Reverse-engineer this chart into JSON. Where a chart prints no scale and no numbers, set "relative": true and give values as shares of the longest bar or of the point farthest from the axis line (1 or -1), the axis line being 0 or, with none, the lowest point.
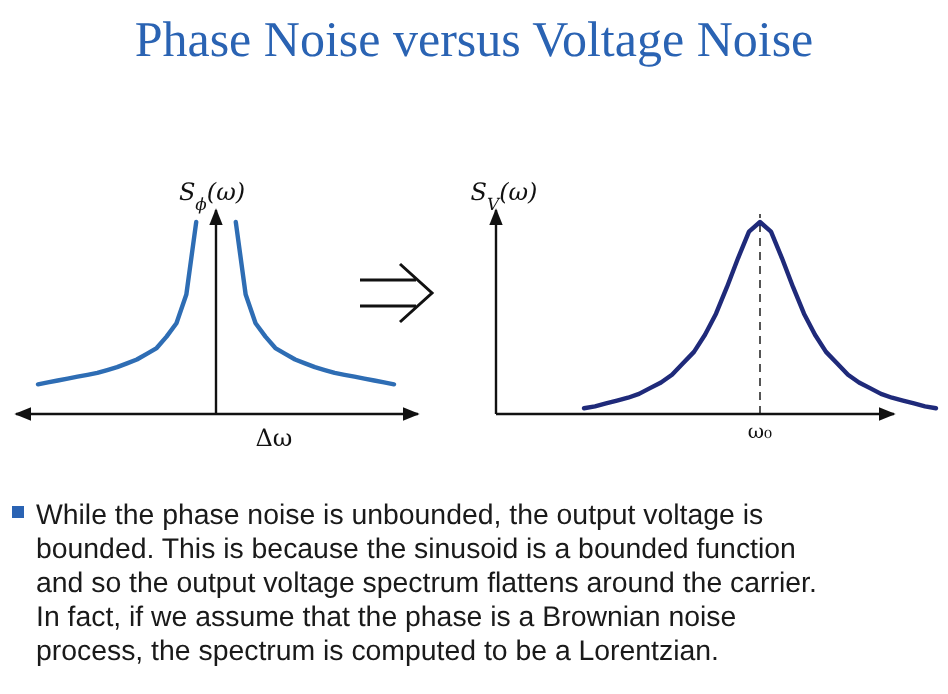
{
  "chart_data": [
    {
      "type": "line",
      "xlabel": "Δω",
      "ylabel": "S$_{ϕ}$(ω)",
      "relative": true,
      "categories": [
        null,
        null,
        null,
        null,
        null,
        null,
        null,
        null,
        null,
        null,
        null,
        null,
        null,
        null,
        null,
        null,
        null,
        null,
        null,
        null,
        null,
        null,
        null,
        null,
        null,
        null,
        null,
        null,
        null,
        null,
        null,
        null,
        null,
        null,
        null,
        null,
        null
      ],
      "series": [
        {
          "color": "#2e6db4",
          "values": [
            0.15,
            0.16,
            0.17,
            0.18,
            0.19,
            0.2,
            0.21,
            0.225,
            0.24,
            0.26,
            0.28,
            0.31,
            0.34,
            0.4,
            0.47,
            0.62,
            1.0,
            null,
            null,
            null,
            null,
            null,
            null,
            null,
            null,
            null,
            null,
            null,
            null,
            null,
            null,
            null,
            null,
            null,
            null,
            null,
            null
          ]
        },
        {
          "color": "#2e6db4",
          "values": [
            null,
            null,
            null,
            null,
            null,
            null,
            null,
            null,
            null,
            null,
            null,
            null,
            null,
            null,
            null,
            null,
            null,
            null,
            null,
            null,
            1.0,
            0.62,
            0.47,
            0.4,
            0.34,
            0.31,
            0.28,
            0.26,
            0.24,
            0.225,
            0.21,
            0.2,
            0.19,
            0.18,
            0.17,
            0.16,
            0.15
          ]
        }
      ]
    },
    {
      "type": "line",
      "ylabel": "S$_{V}$(ω)",
      "relative": true,
      "categories": [
        null,
        null,
        null,
        null,
        null,
        null,
        null,
        null,
        null,
        null,
        null,
        null,
        null,
        null,
        null,
        null,
        null,
        null,
        null,
        null,
        null,
        null,
        null,
        null,
        null,
        null,
        null,
        null,
        null,
        null,
        null,
        null,
        null,
        null,
        null,
        null,
        null,
        null,
        null,
        null,
        null
      ],
      "series": [
        {
          "color": "#1f2a7a",
          "values": [
            null,
            null,
            null,
            null,
            null,
            null,
            null,
            null,
            0.025,
            0.035,
            0.05,
            0.065,
            0.08,
            0.1,
            0.13,
            0.16,
            0.2,
            0.26,
            0.32,
            0.41,
            0.52,
            0.66,
            0.81,
            0.95,
            1.0,
            0.95,
            0.81,
            0.66,
            0.52,
            0.41,
            0.32,
            0.26,
            0.2,
            0.16,
            0.13,
            0.1,
            0.08,
            0.065,
            0.05,
            0.035,
            0.025
          ]
        }
      ],
      "ref_lines": [
        {
          "axis": "x",
          "label": "ω₀",
          "line_style": "dashed",
          "color": "#555555"
        }
      ]
    },
    {
      "type": "other",
      "title": "Phase Noise versus Voltage Noise",
      "annotations": [
        "While the phase noise is unbounded, the output voltage is",
        "bounded. This is because the sinusoid is a bounded function",
        "and so the output voltage spectrum flattens around the carrier.",
        "In fact, if we assume that the phase is a Brownian noise",
        "process, the spectrum is computed to be a Lorentzian."
      ]
    }
  ]
}
